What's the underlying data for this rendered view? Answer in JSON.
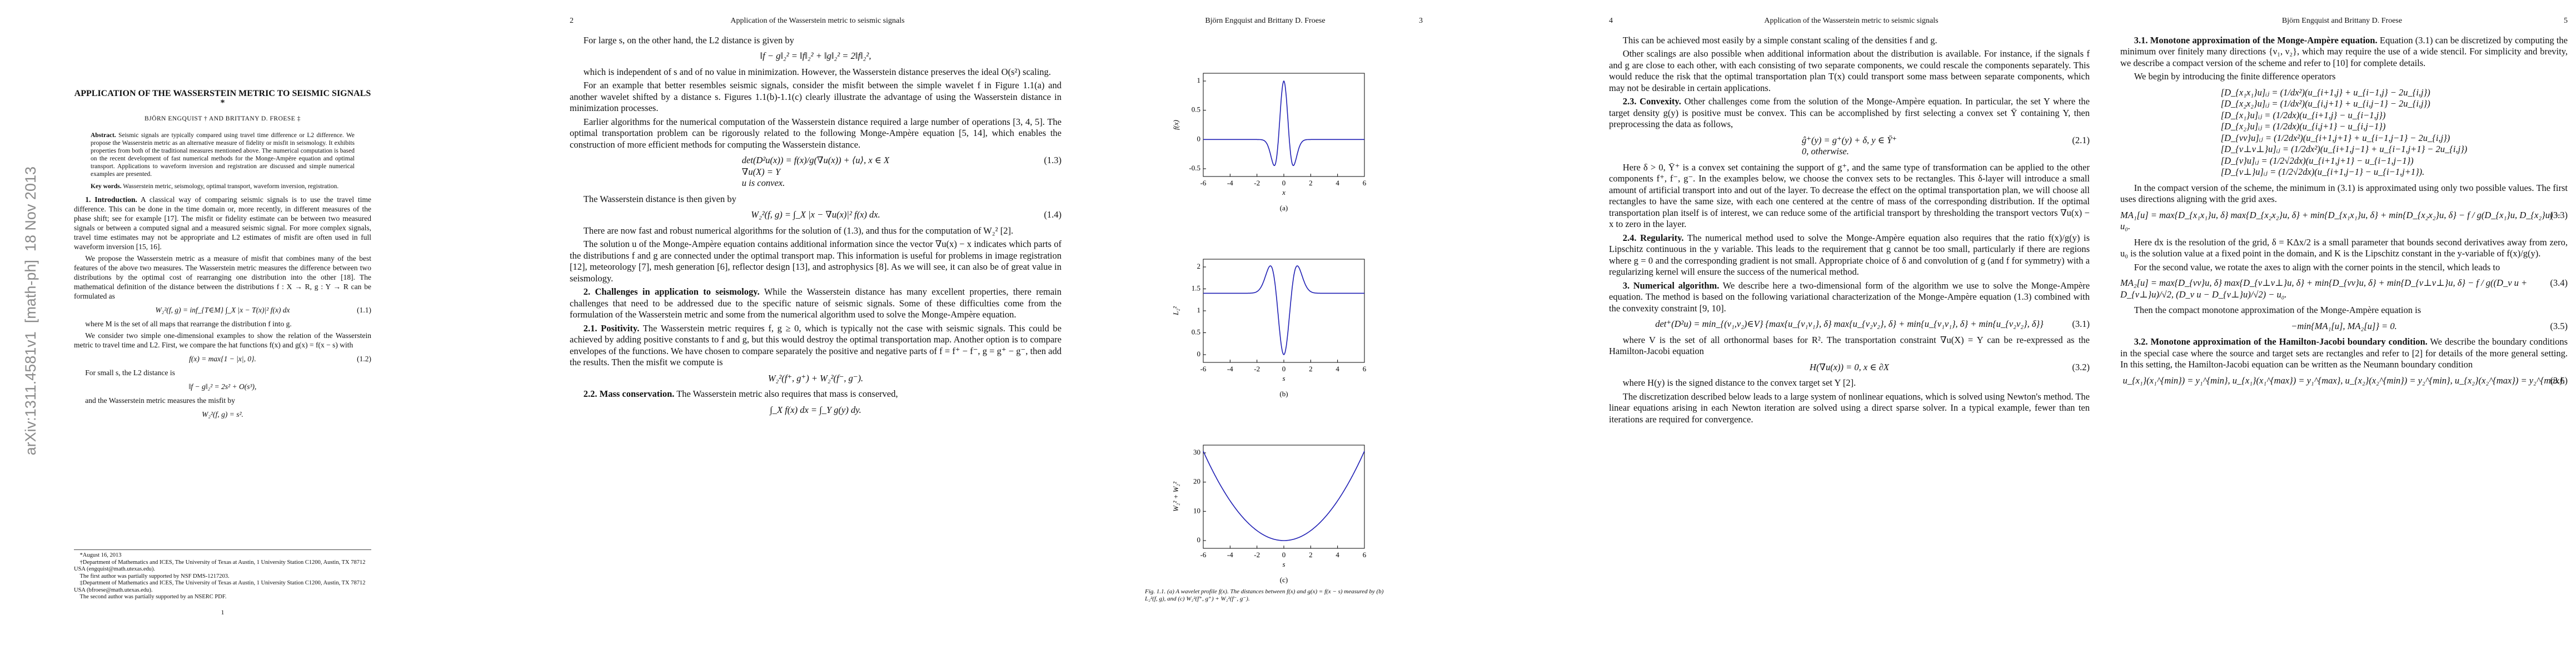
{
  "pages": [
    {
      "stamp": "arXiv:1311.4581v1  [math-ph]  18 Nov 2013",
      "title": "APPLICATION OF THE WASSERSTEIN METRIC TO SEISMIC SIGNALS *",
      "authors": "BJÖRN ENGQUIST † AND BRITTANY D. FROESE ‡",
      "abstract": {
        "label": "Abstract.",
        "text": "Seismic signals are typically compared using travel time difference or L2 difference. We propose the Wasserstein metric as an alternative measure of fidelity or misfit in seismology. It exhibits properties from both of the traditional measures mentioned above. The numerical computation is based on the recent development of fast numerical methods for the Monge-Ampère equation and optimal transport. Applications to waveform inversion and registration are discussed and simple numerical examples are presented."
      },
      "keywords": {
        "label": "Key words.",
        "text": "Wasserstein metric, seismology, optimal transport, waveform inversion, registration."
      },
      "blocks": [
        {
          "heading": "1. Introduction.",
          "text": "A classical way of comparing seismic signals is to use the travel time difference. This can be done in the time domain or, more recently, in different measures of the phase shift; see for example [17]. The misfit or fidelity estimate can be between two measured signals or between a computed signal and a measured seismic signal. For more complex signals, travel time estimates may not be appropriate and L2 estimates of misfit are often used in full waveform inversion [15, 16]."
        },
        {
          "text": "We propose the Wasserstein metric as a measure of misfit that combines many of the best features of the above two measures. The Wasserstein metric measures the difference between two distributions by the optimal cost of rearranging one distribution into the other [18]. The mathematical definition of the distance between the distributions f : X → R, g : Y → R can be formulated as"
        },
        {
          "equation": "W₂²(f, g) = inf_{T∈M} ∫_X |x − T(x)|² f(x) dx",
          "number": "(1.1)"
        },
        {
          "text": "where M is the set of all maps that rearrange the distribution f into g."
        },
        {
          "text": "We consider two simple one-dimensional examples to show the relation of the Wasserstein metric to travel time and L2. First, we compare the hat functions f(x) and g(x) = f(x − s) with"
        },
        {
          "equation": "f(x) = max{1 − |x|, 0}.",
          "number": "(1.2)"
        },
        {
          "text": "For small s, the L2 distance is"
        },
        {
          "equation": "‖f − g‖₂² = 2s² + O(s³),"
        },
        {
          "text": "and the Wasserstein metric measures the misfit by"
        },
        {
          "equation": "W₂²(f, g) = s²."
        }
      ],
      "footnotes": [
        "*August 16, 2013",
        "†Department of Mathematics and ICES, The University of Texas at Austin, 1 University Station C1200, Austin, TX 78712 USA (engquist@math.utexas.edu).",
        "The first author was partially supported by NSF DMS-1217203.",
        "‡Department of Mathematics and ICES, The University of Texas at Austin, 1 University Station C1200, Austin, TX 78712 USA (bfroese@math.utexas.edu).",
        "The second author was partially supported by an NSERC PDF."
      ],
      "number": "1"
    },
    {
      "header": {
        "number": "2",
        "title": "Application of the Wasserstein metric to seismic signals"
      },
      "blocks": [
        {
          "text": "For large s, on the other hand, the L2 distance is given by"
        },
        {
          "equation": "‖f − g‖₂² = ‖f‖₂² + ‖g‖₂² = 2‖f‖₂²,"
        },
        {
          "text": "which is independent of s and of no value in minimization. However, the Wasserstein distance preserves the ideal O(s²) scaling."
        },
        {
          "text": "For an example that better resembles seismic signals, consider the misfit between the simple wavelet f in Figure 1.1(a) and another wavelet shifted by a distance s. Figures 1.1(b)-1.1(c) clearly illustrate the advantage of using the Wasserstein distance in minimization processes."
        },
        {
          "text": "Earlier algorithms for the numerical computation of the Wasserstein distance required a large number of operations [3, 4, 5]. The optimal transportation problem can be rigorously related to the following Monge-Ampère equation [5, 14], which enables the construction of more efficient methods for computing the Wasserstein distance."
        },
        {
          "lines": [
            "det(D²u(x)) = f(x)/g(∇u(x)) + ⟨u⟩,   x ∈ X",
            "∇u(X) = Y",
            "u is convex."
          ],
          "number": "(1.3)"
        },
        {
          "text": "The Wasserstein distance is then given by"
        },
        {
          "equation": "W₂²(f, g) = ∫_X |x − ∇u(x)|² f(x) dx.",
          "number": "(1.4)"
        },
        {
          "text": "There are now fast and robust numerical algorithms for the solution of (1.3), and thus for the computation of W₂² [2]."
        },
        {
          "text": "The solution u of the Monge-Ampère equation contains additional information since the vector ∇u(x) − x indicates which parts of the distributions f and g are connected under the optimal transport map. This information is useful for problems in image registration [12], meteorology [7], mesh generation [6], reflector design [13], and astrophysics [8]. As we will see, it can also be of great value in seismology."
        },
        {
          "heading": "2. Challenges in application to seismology.",
          "text": "While the Wasserstein distance has many excellent properties, there remain challenges that need to be addressed due to the specific nature of seismic signals. Some of these difficulties come from the formulation of the Wasserstein metric and some from the numerical algorithm used to solve the Monge-Ampère equation."
        },
        {
          "heading": "2.1. Positivity.",
          "text": "The Wasserstein metric requires f, g ≥ 0, which is typically not the case with seismic signals. This could be achieved by adding positive constants to f and g, but this would destroy the optimal transportation map. Another option is to compare envelopes of the functions. We have chosen to compare separately the positive and negative parts of f = f⁺ − f⁻, g = g⁺ − g⁻, then add the results. Then the misfit we compute is"
        },
        {
          "equation": "W₂²(f⁺, g⁺) + W₂²(f⁻, g⁻)."
        },
        {
          "heading": "2.2. Mass conservation.",
          "text": "The Wasserstein metric also requires that mass is conserved,"
        },
        {
          "equation": "∫_X f(x) dx = ∫_Y g(y) dy."
        }
      ]
    },
    {
      "header": {
        "authors": "Björn Engquist and Brittany D. Froese",
        "number": "3"
      },
      "figures": [
        {
          "ylabel": "f(x)",
          "yticks": [
            1,
            0.5,
            0,
            -0.5
          ],
          "xticks": [
            -6,
            -4,
            -2,
            0,
            2,
            4,
            6
          ],
          "xlabel": "x",
          "label": "(a)"
        },
        {
          "ylabel": "L₂²",
          "yticks": [
            2,
            1.5,
            1,
            0.5,
            0
          ],
          "xticks": [
            -6,
            -4,
            -2,
            0,
            2,
            4,
            6
          ],
          "xlabel": "s",
          "label": "(b)"
        },
        {
          "ylabel": "W₂² + W₂²",
          "yticks": [
            30,
            20,
            10,
            0
          ],
          "xticks": [
            -6,
            -4,
            -2,
            0,
            2,
            4,
            6
          ],
          "xlabel": "s",
          "label": "(c)"
        }
      ],
      "caption": "Fig. 1.1. (a) A wavelet profile f(x). The distances between f(x) and g(x) = f(x − s) measured by (b) L₂²(f, g), and (c) W₂²(f⁺, g⁺) + W₂²(f⁻, g⁻)."
    },
    {
      "header": {
        "number": "4",
        "title": "Application of the Wasserstein metric to seismic signals"
      },
      "blocks": [
        {
          "text": "This can be achieved most easily by a simple constant scaling of the densities f and g."
        },
        {
          "text": "Other scalings are also possible when additional information about the distribution is available. For instance, if the signals f and g are close to each other, with each consisting of two separate components, we could rescale the components separately. This would reduce the risk that the optimal transportation plan T(x) could transport some mass between separate components, which may not be desirable in certain applications."
        },
        {
          "heading": "2.3. Convexity.",
          "text": "Other challenges come from the solution of the Monge-Ampère equation. In particular, the set Y where the target density g(y) is positive must be convex. This can be accomplished by first selecting a convex set Ȳ containing Y, then preprocessing the data as follows,"
        },
        {
          "lines": [
            "ĝ⁺(y) = g⁺(y) + δ,   y ∈ Ȳ⁺",
            "0,   otherwise."
          ],
          "number": "(2.1)"
        },
        {
          "text": "Here δ > 0, Ȳ⁺ is a convex set containing the support of g⁺, and the same type of transformation can be applied to the other components f⁺, f⁻, g⁻. In the examples below, we choose the convex sets to be rectangles. This δ-layer will introduce a small amount of artificial transport into and out of the layer. To decrease the effect on the optimal transportation plan, we will choose all rectangles to have the same size, with each one centered at the centre of mass of the corresponding distribution. If the optimal transportation plan itself is of interest, we can reduce some of the artificial transport by thresholding the transport vectors ∇u(x) − x to zero in the layer."
        },
        {
          "heading": "2.4. Regularity.",
          "text": "The numerical method used to solve the Monge-Ampère equation also requires that the ratio f(x)/g(y) is Lipschitz continuous in the y variable. This leads to the requirement that g cannot be too small, particularly if there are regions where g = 0 and the corresponding gradient is not small. Appropriate choice of δ and convolution of g (and f for symmetry) with a regularizing kernel will ensure the success of the numerical method."
        },
        {
          "heading": "3. Numerical algorithm.",
          "text": "We describe here a two-dimensional form of the algorithm we use to solve the Monge-Ampère equation. The method is based on the following variational characterization of the Monge-Ampère equation (1.3) combined with the convexity constraint [9, 10]."
        },
        {
          "equation": "det⁺(D²u) = min_{(ν₁,ν₂)∈V} {max{u_{ν₁ν₁}, δ} max{u_{ν₂ν₂}, δ} + min{u_{ν₁ν₁}, δ} + min{u_{ν₂ν₂}, δ}}",
          "number": "(3.1)"
        },
        {
          "text": "where V is the set of all orthonormal bases for R². The transportation constraint ∇u(X) = Y can be re-expressed as the Hamilton-Jacobi equation"
        },
        {
          "equation": "H(∇u(x)) = 0,   x ∈ ∂X",
          "number": "(3.2)"
        },
        {
          "text": "where H(y) is the signed distance to the convex target set Y [2]."
        },
        {
          "text": "The discretization described below leads to a large system of nonlinear equations, which is solved using Newton's method. The linear equations arising in each Newton iteration are solved using a direct sparse solver. In a typical example, fewer than ten iterations are required for convergence."
        }
      ]
    },
    {
      "header": {
        "authors": "Björn Engquist and Brittany D. Froese",
        "number": "5"
      },
      "blocks": [
        {
          "heading": "3.1. Monotone approximation of the Monge-Ampère equation.",
          "text": "Equation (3.1) can be discretized by computing the minimum over finitely many directions {ν₁, ν₂}, which may require the use of a wide stencil. For simplicity and brevity, we describe a compact version of the scheme and refer to [10] for complete details."
        },
        {
          "text": "We begin by introducing the finite difference operators"
        },
        {
          "lines": [
            "[D_{x₁x₁}u]ᵢⱼ = (1/dx²)(u_{i+1,j} + u_{i−1,j} − 2u_{i,j})",
            "[D_{x₂x₂}u]ᵢⱼ = (1/dx²)(u_{i,j+1} + u_{i,j−1} − 2u_{i,j})",
            "[D_{x₁}u]ᵢⱼ = (1/2dx)(u_{i+1,j} − u_{i−1,j})",
            "[D_{x₂}u]ᵢⱼ = (1/2dx)(u_{i,j+1} − u_{i,j−1})",
            "[D_{vv}u]ᵢⱼ = (1/2dx²)(u_{i+1,j+1} + u_{i−1,j−1} − 2u_{i,j})",
            "[D_{v⊥v⊥}u]ᵢⱼ = (1/2dx²)(u_{i+1,j−1} + u_{i−1,j+1} − 2u_{i,j})",
            "[D_{v}u]ᵢⱼ = (1/2√2dx)(u_{i+1,j+1} − u_{i−1,j−1})",
            "[D_{v⊥}u]ᵢⱼ = (1/2√2dx)(u_{i+1,j−1} − u_{i−1,j+1})."
          ]
        },
        {
          "text": "In the compact version of the scheme, the minimum in (3.1) is approximated using only two possible values. The first uses directions aligning with the grid axes."
        },
        {
          "equation": "MA₁[u] = max{D_{x₁x₁}u, δ} max{D_{x₂x₂}u, δ} + min{D_{x₁x₁}u, δ} + min{D_{x₂x₂}u, δ} − f / g(D_{x₁}u, D_{x₂}u) − u₀.",
          "number": "(3.3)"
        },
        {
          "text": "Here dx is the resolution of the grid, δ = KΔx/2 is a small parameter that bounds second derivatives away from zero, u₀ is the solution value at a fixed point in the domain, and K is the Lipschitz constant in the y-variable of f(x)/g(y)."
        },
        {
          "text": "For the second value, we rotate the axes to align with the corner points in the stencil, which leads to"
        },
        {
          "equation": "MA₂[u] = max{D_{vv}u, δ} max{D_{v⊥v⊥}u, δ} + min{D_{vv}u, δ} + min{D_{v⊥v⊥}u, δ} − f / g((D_v u + D_{v⊥}u)/√2, (D_v u − D_{v⊥}u)/√2) − u₀.",
          "number": "(3.4)"
        },
        {
          "text": "Then the compact monotone approximation of the Monge-Ampère equation is"
        },
        {
          "equation": "−min{MA₁[u], MA₂[u]} = 0.",
          "number": "(3.5)"
        },
        {
          "heading": "3.2. Monotone approximation of the Hamilton-Jacobi boundary condition.",
          "text": "We describe the boundary conditions in the special case where the source and target sets are rectangles and refer to [2] for details of the more general setting. In this setting, the Hamilton-Jacobi equation can be written as the Neumann boundary condition"
        },
        {
          "equation": "u_{x₁}(x₁^{min}) = y₁^{min},  u_{x₁}(x₁^{max}) = y₁^{max},  u_{x₂}(x₂^{min}) = y₂^{min},  u_{x₂}(x₂^{max}) = y₂^{max}.",
          "number": "(3.6)"
        }
      ]
    }
  ]
}
